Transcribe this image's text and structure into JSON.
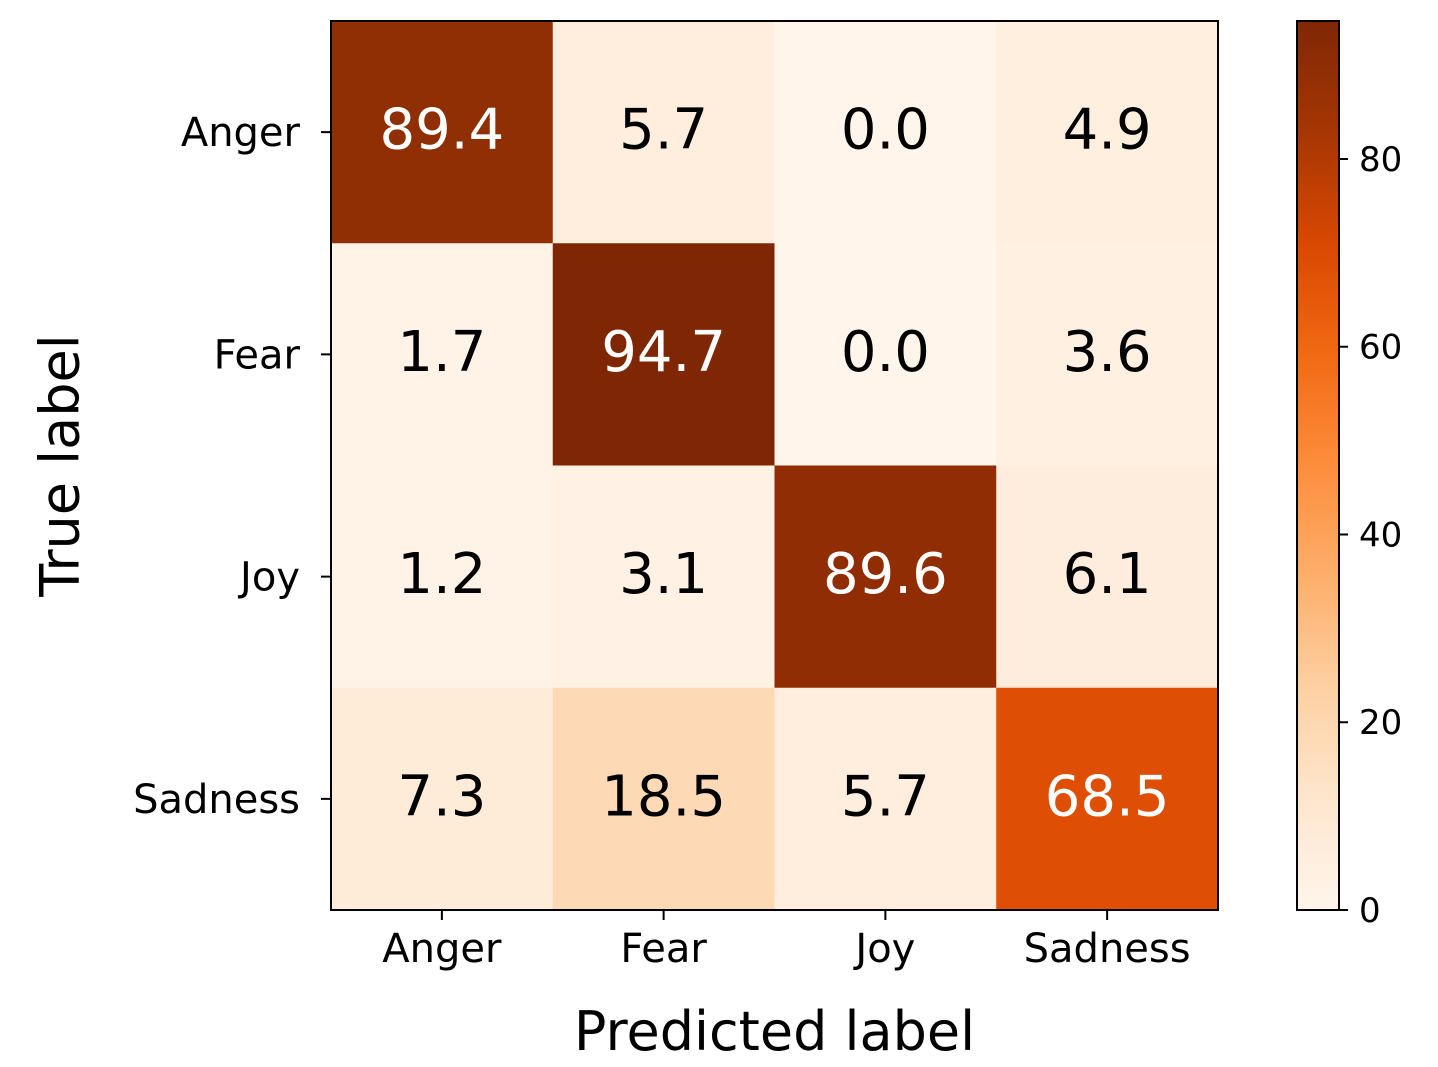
{
  "chart_data": {
    "type": "heatmap",
    "title": "",
    "xlabel": "Predicted label",
    "ylabel": "True label",
    "x_categories": [
      "Anger",
      "Fear",
      "Joy",
      "Sadness"
    ],
    "y_categories": [
      "Anger",
      "Fear",
      "Joy",
      "Sadness"
    ],
    "values": [
      [
        89.4,
        5.7,
        0.0,
        4.9
      ],
      [
        1.7,
        94.7,
        0.0,
        3.6
      ],
      [
        1.2,
        3.1,
        89.6,
        6.1
      ],
      [
        7.3,
        18.5,
        5.7,
        68.5
      ]
    ],
    "value_labels": [
      [
        "89.4",
        "5.7",
        "0.0",
        "4.9"
      ],
      [
        "1.7",
        "94.7",
        "0.0",
        "3.6"
      ],
      [
        "1.2",
        "3.1",
        "89.6",
        "6.1"
      ],
      [
        "7.3",
        "18.5",
        "5.7",
        "68.5"
      ]
    ],
    "colormap": "Oranges",
    "colormap_stops": [
      "#fff5eb",
      "#fee6ce",
      "#fdd0a2",
      "#fdae6b",
      "#fd8d3c",
      "#f16913",
      "#d94801",
      "#a63603",
      "#7f2704"
    ],
    "colorbar": {
      "vmin": 0,
      "vmax": 94.7,
      "ticks": [
        0,
        20,
        40,
        60,
        80
      ],
      "tick_labels": [
        "0",
        "20",
        "40",
        "60",
        "80"
      ]
    },
    "text_color_dark": "#000000",
    "text_color_light": "#ffffff",
    "grid": false
  }
}
